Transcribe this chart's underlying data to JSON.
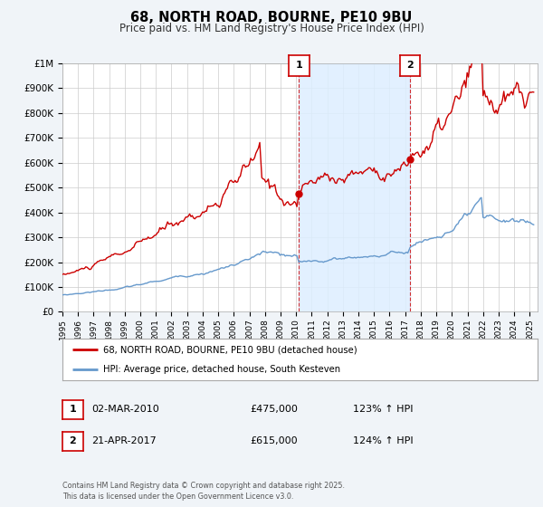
{
  "title": "68, NORTH ROAD, BOURNE, PE10 9BU",
  "subtitle": "Price paid vs. HM Land Registry's House Price Index (HPI)",
  "title_fontsize": 10.5,
  "subtitle_fontsize": 8.5,
  "bg_color": "#f0f4f8",
  "plot_bg_color": "#ffffff",
  "grid_color": "#cccccc",
  "red_color": "#cc0000",
  "blue_color": "#6699cc",
  "span_color": "#ddeeff",
  "ylim": [
    0,
    1000000
  ],
  "yticks": [
    0,
    100000,
    200000,
    300000,
    400000,
    500000,
    600000,
    700000,
    800000,
    900000,
    1000000
  ],
  "ytick_labels": [
    "£0",
    "£100K",
    "£200K",
    "£300K",
    "£400K",
    "£500K",
    "£600K",
    "£700K",
    "£800K",
    "£900K",
    "£1M"
  ],
  "xmin": 1995,
  "xmax": 2025.5,
  "xticks": [
    1995,
    1996,
    1997,
    1998,
    1999,
    2000,
    2001,
    2002,
    2003,
    2004,
    2005,
    2006,
    2007,
    2008,
    2009,
    2010,
    2011,
    2012,
    2013,
    2014,
    2015,
    2016,
    2017,
    2018,
    2019,
    2020,
    2021,
    2022,
    2023,
    2024,
    2025
  ],
  "event1_x": 2010.17,
  "event1_y": 475000,
  "event1_label": "1",
  "event1_date": "02-MAR-2010",
  "event1_price": "£475,000",
  "event1_hpi": "123% ↑ HPI",
  "event2_x": 2017.31,
  "event2_y": 615000,
  "event2_label": "2",
  "event2_date": "21-APR-2017",
  "event2_price": "£615,000",
  "event2_hpi": "124% ↑ HPI",
  "legend_label_red": "68, NORTH ROAD, BOURNE, PE10 9BU (detached house)",
  "legend_label_blue": "HPI: Average price, detached house, South Kesteven",
  "footer": "Contains HM Land Registry data © Crown copyright and database right 2025.\nThis data is licensed under the Open Government Licence v3.0."
}
